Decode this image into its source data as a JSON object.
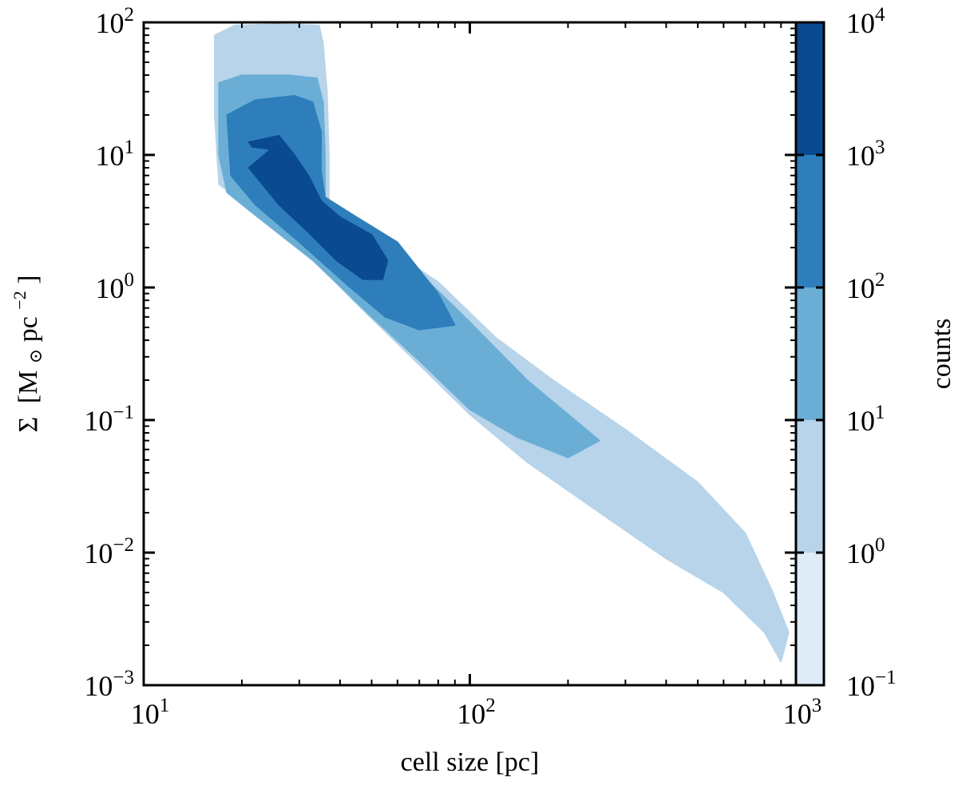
{
  "chart_data": {
    "type": "heatmap",
    "title": "",
    "xlabel": "cell size [pc]",
    "ylabel": "Σ [M☉ pc⁻²]",
    "ylabel_parts": {
      "symbol": "Σ",
      "unit_open": "[M",
      "sun": "⊙",
      "unit_pc": " pc",
      "exp": "−2",
      "unit_close": "]"
    },
    "x_scale": "log",
    "y_scale": "log",
    "xlim": [
      10,
      1000
    ],
    "ylim": [
      0.001,
      100
    ],
    "x_ticks": [
      {
        "value": 10,
        "base": "10",
        "exp": "1"
      },
      {
        "value": 100,
        "base": "10",
        "exp": "2"
      },
      {
        "value": 1000,
        "base": "10",
        "exp": "3"
      }
    ],
    "y_ticks": [
      {
        "value": 0.001,
        "base": "10",
        "exp": "−3"
      },
      {
        "value": 0.01,
        "base": "10",
        "exp": "−2"
      },
      {
        "value": 0.1,
        "base": "10",
        "exp": "−1"
      },
      {
        "value": 1,
        "base": "10",
        "exp": "0"
      },
      {
        "value": 10,
        "base": "10",
        "exp": "1"
      },
      {
        "value": 100,
        "base": "10",
        "exp": "2"
      }
    ],
    "grid": false,
    "colorbar": {
      "label": "counts",
      "scale": "log",
      "levels": [
        {
          "low": 0.1,
          "high": 1,
          "color": "#dfebf7"
        },
        {
          "low": 1,
          "high": 10,
          "color": "#b7d4ea"
        },
        {
          "low": 10,
          "high": 100,
          "color": "#6aaed6"
        },
        {
          "low": 100,
          "high": 1000,
          "color": "#2e7ebc"
        },
        {
          "low": 1000,
          "high": 10000,
          "color": "#0a4a90"
        }
      ],
      "ticks": [
        {
          "value": 0.1,
          "base": "10",
          "exp": "−1"
        },
        {
          "value": 1,
          "base": "10",
          "exp": "0"
        },
        {
          "value": 10,
          "base": "10",
          "exp": "1"
        },
        {
          "value": 100,
          "base": "10",
          "exp": "2"
        },
        {
          "value": 1000,
          "base": "10",
          "exp": "3"
        },
        {
          "value": 10000,
          "base": "10",
          "exp": "4"
        }
      ]
    },
    "contours": [
      {
        "level": 1,
        "color": "#b7d4ea",
        "points": [
          [
            16.5,
            80
          ],
          [
            19,
            95
          ],
          [
            25,
            97
          ],
          [
            30,
            96
          ],
          [
            34.5,
            95
          ],
          [
            35.5,
            70
          ],
          [
            36.5,
            30
          ],
          [
            37,
            10
          ],
          [
            37,
            4.5
          ],
          [
            50,
            2.4
          ],
          [
            80,
            1.1
          ],
          [
            120,
            0.42
          ],
          [
            180,
            0.2
          ],
          [
            300,
            0.085
          ],
          [
            500,
            0.034
          ],
          [
            700,
            0.014
          ],
          [
            850,
            0.005
          ],
          [
            950,
            0.0025
          ],
          [
            900,
            0.0015
          ],
          [
            800,
            0.0025
          ],
          [
            600,
            0.005
          ],
          [
            400,
            0.009
          ],
          [
            250,
            0.02
          ],
          [
            150,
            0.048
          ],
          [
            100,
            0.11
          ],
          [
            70,
            0.26
          ],
          [
            45,
            0.75
          ],
          [
            30,
            2.1
          ],
          [
            20,
            4.5
          ],
          [
            17,
            6
          ],
          [
            16.5,
            20
          ]
        ]
      },
      {
        "level": 10,
        "color": "#6aaed6",
        "points": [
          [
            17,
            35
          ],
          [
            20,
            40
          ],
          [
            28,
            40
          ],
          [
            34,
            38
          ],
          [
            35.5,
            25
          ],
          [
            36,
            10
          ],
          [
            36,
            4.3
          ],
          [
            45,
            2.9
          ],
          [
            70,
            1.3
          ],
          [
            100,
            0.55
          ],
          [
            150,
            0.2
          ],
          [
            250,
            0.07
          ],
          [
            200,
            0.052
          ],
          [
            140,
            0.074
          ],
          [
            100,
            0.12
          ],
          [
            70,
            0.28
          ],
          [
            50,
            0.6
          ],
          [
            33,
            1.6
          ],
          [
            22,
            3.5
          ],
          [
            18,
            5.2
          ],
          [
            17,
            10
          ]
        ]
      },
      {
        "level": 100,
        "color": "#2e7ebc",
        "points": [
          [
            18,
            20
          ],
          [
            22,
            26
          ],
          [
            29,
            28
          ],
          [
            33,
            25
          ],
          [
            35,
            15
          ],
          [
            35,
            7.5
          ],
          [
            36,
            4.8
          ],
          [
            45,
            3.4
          ],
          [
            60,
            2.2
          ],
          [
            80,
            0.9
          ],
          [
            90,
            0.52
          ],
          [
            70,
            0.48
          ],
          [
            55,
            0.6
          ],
          [
            42,
            1.05
          ],
          [
            30,
            2.2
          ],
          [
            22,
            4.2
          ],
          [
            18.5,
            7
          ]
        ]
      },
      {
        "level": 1000,
        "color": "#0a4a90",
        "points": [
          [
            21,
            12.5
          ],
          [
            26,
            14
          ],
          [
            29,
            10
          ],
          [
            32,
            7
          ],
          [
            35,
            4.5
          ],
          [
            40,
            3.4
          ],
          [
            50,
            2.5
          ],
          [
            56,
            1.6
          ],
          [
            54,
            1.15
          ],
          [
            47,
            1.15
          ],
          [
            39,
            1.6
          ],
          [
            32,
            2.6
          ],
          [
            26,
            4.2
          ],
          [
            21,
            8
          ],
          [
            24.5,
            11
          ],
          [
            21.5,
            11.5
          ]
        ]
      }
    ]
  }
}
